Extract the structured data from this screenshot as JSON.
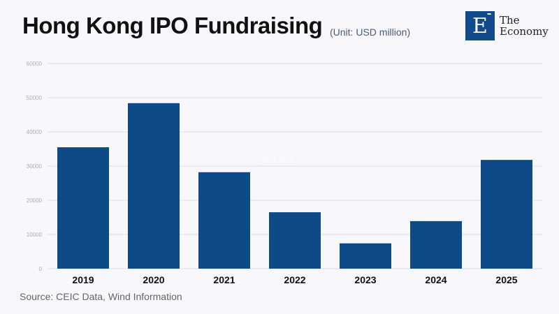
{
  "header": {
    "title": "Hong Kong IPO Fundraising",
    "unit": "(Unit: USD million)"
  },
  "logo": {
    "letter": "E",
    "line1": "The",
    "line2": "Economy"
  },
  "watermark": "2131",
  "source": "Source: CEIC Data, Wind Information",
  "chart_data": {
    "type": "bar",
    "categories": [
      "2019",
      "2020",
      "2021",
      "2022",
      "2023",
      "2024",
      "2025"
    ],
    "values": [
      35500,
      48400,
      28200,
      16500,
      7400,
      13900,
      31800
    ],
    "ylim": [
      0,
      60000
    ],
    "yticks": [
      "0",
      "10000",
      "20000",
      "30000",
      "40000",
      "50000",
      "60000"
    ],
    "grid": true,
    "bar_color": "#0d4a87"
  }
}
